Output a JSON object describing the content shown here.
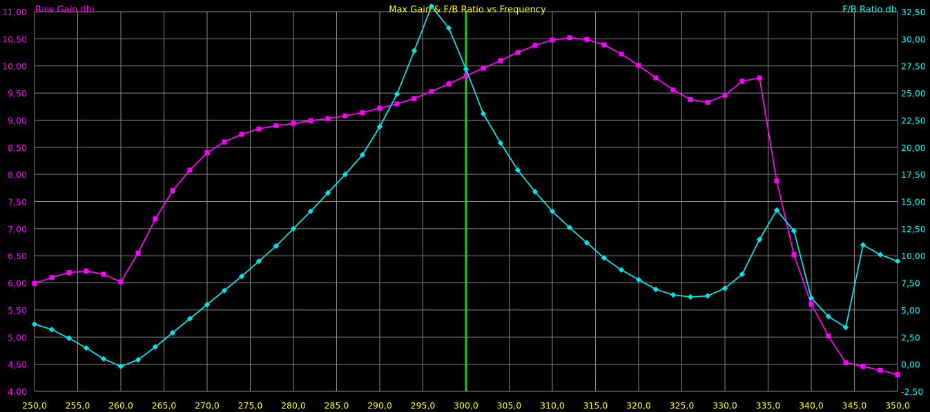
{
  "chart_data": {
    "type": "line",
    "title": "Max Gain & F/B Ratio vs Frequency",
    "ylabel_left": "Raw Gain dbi",
    "ylabel_right": "F/B Ratio db",
    "xlim": [
      250,
      350
    ],
    "ylim_left": [
      4.0,
      11.0
    ],
    "ylim_right": [
      -2.5,
      32.5
    ],
    "x_ticks": [
      "250,0",
      "255,0",
      "260,0",
      "265,0",
      "270,0",
      "275,0",
      "280,0",
      "285,0",
      "290,0",
      "295,0",
      "300,0",
      "305,0",
      "310,0",
      "315,0",
      "320,0",
      "325,0",
      "330,0",
      "335,0",
      "340,0",
      "345,0",
      "350,0"
    ],
    "y_left_ticks": [
      "4,00",
      "4,50",
      "5,00",
      "5,50",
      "6,00",
      "6,50",
      "7,00",
      "7,50",
      "8,00",
      "8,50",
      "9,00",
      "9,50",
      "10,00",
      "10,50",
      "11,00"
    ],
    "y_right_ticks": [
      "-2,50",
      "0,00",
      "2,50",
      "5,00",
      "7,50",
      "10,00",
      "12,50",
      "15,00",
      "17,50",
      "20,00",
      "22,50",
      "25,00",
      "27,50",
      "30,00",
      "32,50"
    ],
    "grid": true,
    "marker_line_x": 300,
    "colors": {
      "background": "#000000",
      "grid": "#8a8a8a",
      "x_tick_text": "#ffff00",
      "left_axis_text": "#ff00ff",
      "right_axis_text": "#00ffff",
      "title_text": "#ffff00",
      "marker_line": "#22cc22"
    },
    "series": [
      {
        "name": "Raw Gain dbi",
        "axis": "left",
        "color": "#ff00ff",
        "marker": "square",
        "x": [
          250,
          252,
          254,
          256,
          258,
          260,
          262,
          264,
          266,
          268,
          270,
          272,
          274,
          276,
          278,
          280,
          282,
          284,
          286,
          288,
          290,
          292,
          294,
          296,
          298,
          300,
          302,
          304,
          306,
          308,
          310,
          312,
          314,
          316,
          318,
          320,
          322,
          324,
          326,
          328,
          330,
          332,
          334,
          336,
          338,
          340,
          342,
          344,
          346,
          348,
          350
        ],
        "values": [
          5.99,
          6.1,
          6.19,
          6.22,
          6.16,
          6.02,
          6.55,
          7.18,
          7.7,
          8.08,
          8.4,
          8.6,
          8.74,
          8.84,
          8.9,
          8.94,
          8.99,
          9.03,
          9.08,
          9.14,
          9.22,
          9.3,
          9.4,
          9.53,
          9.67,
          9.82,
          9.96,
          10.1,
          10.25,
          10.38,
          10.48,
          10.52,
          10.49,
          10.39,
          10.22,
          10.01,
          9.78,
          9.56,
          9.38,
          9.33,
          9.46,
          9.72,
          9.78,
          7.88,
          6.52,
          5.61,
          5.02,
          4.53,
          4.46,
          4.39,
          4.31
        ]
      },
      {
        "name": "F/B Ratio db",
        "axis": "right",
        "color": "#00e5ee",
        "marker": "diamond",
        "x": [
          250,
          252,
          254,
          256,
          258,
          260,
          262,
          264,
          266,
          268,
          270,
          272,
          274,
          276,
          278,
          280,
          282,
          284,
          286,
          288,
          290,
          292,
          294,
          296,
          298,
          300,
          302,
          304,
          306,
          308,
          310,
          312,
          314,
          316,
          318,
          320,
          322,
          324,
          326,
          328,
          330,
          332,
          334,
          336,
          338,
          340,
          342,
          344,
          346,
          348,
          350
        ],
        "values": [
          3.7,
          3.2,
          2.4,
          1.5,
          0.5,
          -0.2,
          0.4,
          1.6,
          2.9,
          4.2,
          5.5,
          6.8,
          8.1,
          9.5,
          10.9,
          12.5,
          14.1,
          15.8,
          17.5,
          19.3,
          21.9,
          24.9,
          28.9,
          33.0,
          31.0,
          27.2,
          23.1,
          20.4,
          17.9,
          15.9,
          14.1,
          12.6,
          11.2,
          9.8,
          8.7,
          7.8,
          6.9,
          6.4,
          6.2,
          6.3,
          7.0,
          8.3,
          11.5,
          14.2,
          12.3,
          6.1,
          4.4,
          3.4,
          11.0,
          10.1,
          9.5
        ]
      }
    ]
  }
}
